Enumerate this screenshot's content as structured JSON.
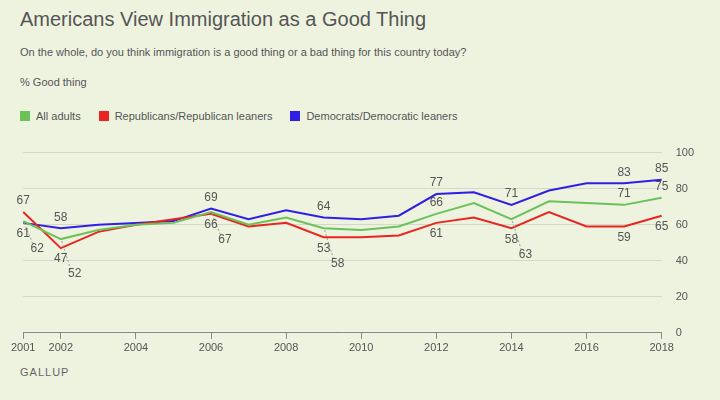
{
  "chart_data": {
    "type": "line",
    "title": "Americans View Immigration as a Good Thing",
    "subtitle": "On the whole, do you think immigration is a good thing or a bad thing for this country today?",
    "y_label": "% Good thing",
    "source": "GALLUP",
    "categories": [
      "2001",
      "2002",
      null,
      "2004",
      null,
      "2006",
      null,
      "2008",
      null,
      "2010",
      null,
      "2012",
      null,
      "2014",
      null,
      "2016",
      null,
      "2018"
    ],
    "series": [
      {
        "name": "All adults",
        "color": "#6cc25a",
        "values": [
          62,
          52,
          57,
          60,
          61,
          67,
          60,
          64,
          58,
          57,
          59,
          66,
          72,
          63,
          73,
          72,
          71,
          75
        ],
        "value_labels": [
          "62",
          "52",
          null,
          null,
          null,
          "67",
          null,
          null,
          "58",
          null,
          null,
          "66",
          null,
          "63",
          null,
          null,
          "71",
          "75"
        ]
      },
      {
        "name": "Republicans/Republican leaners",
        "color": "#e8261f",
        "values": [
          67,
          47,
          56,
          60,
          63,
          66,
          59,
          61,
          53,
          53,
          54,
          61,
          64,
          58,
          67,
          59,
          59,
          65
        ],
        "value_labels": [
          "67",
          "47",
          null,
          null,
          null,
          "66",
          null,
          null,
          "53",
          null,
          null,
          "61",
          null,
          "58",
          null,
          null,
          "59",
          "65"
        ]
      },
      {
        "name": "Democrats/Democratic leaners",
        "color": "#2f1ee6",
        "values": [
          61,
          58,
          60,
          61,
          62,
          69,
          63,
          68,
          64,
          63,
          65,
          77,
          78,
          71,
          79,
          83,
          83,
          85
        ],
        "value_labels": [
          "61",
          "58",
          null,
          null,
          null,
          "69",
          null,
          null,
          "64",
          null,
          null,
          "77",
          null,
          "71",
          null,
          null,
          "83",
          "85"
        ]
      }
    ],
    "ylim": [
      0,
      100
    ],
    "yticks": [
      0,
      20,
      40,
      60,
      80,
      100
    ],
    "grid": true,
    "legend": "top",
    "data_labels": true
  }
}
